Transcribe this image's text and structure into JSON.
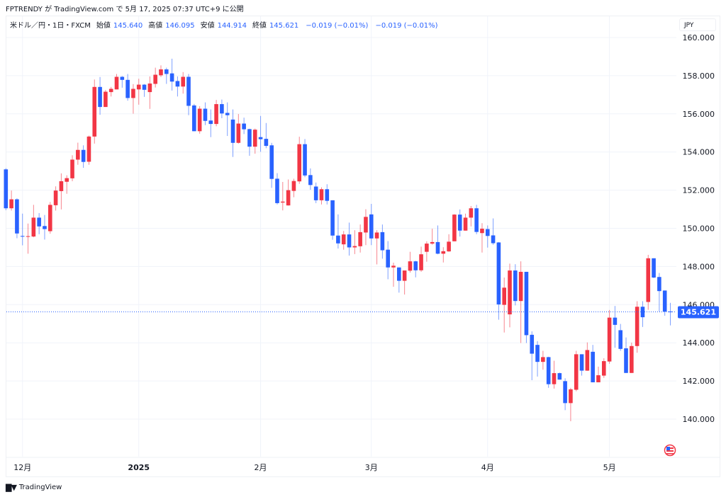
{
  "publish_line": "FPTRENDY が TradingView.com で 5月 17, 2025 07:37 UTC+9 に公開",
  "legend": {
    "symbol": "米ドル／円・1日・FXCM",
    "open_label": "始値",
    "open": "145.640",
    "high_label": "高値",
    "high": "146.095",
    "low_label": "安値",
    "low": "144.914",
    "close_label": "終値",
    "close": "145.621",
    "change1": "−0.019 (−0.01%)",
    "change2": "−0.019 (−0.01%)"
  },
  "currency_label": "JPY",
  "last_price_label": "145.621",
  "brand": {
    "logo": "TV",
    "name": "TradingView"
  },
  "flag_icon": "us-flag-icon",
  "colors": {
    "up": "#F23645",
    "down": "#2962FF",
    "grid": "#F0F3FA",
    "last_price": "#2962FF"
  },
  "chart_data": {
    "type": "candlestick",
    "symbol": "USD/JPY",
    "interval": "1D",
    "y_range": [
      138.5,
      161.2
    ],
    "y_ticks": [
      "140.000",
      "142.000",
      "144.000",
      "146.000",
      "148.000",
      "150.000",
      "152.000",
      "154.000",
      "156.000",
      "158.000",
      "160.000"
    ],
    "x_ticks": [
      {
        "label": "12月",
        "index": 3,
        "bold": false
      },
      {
        "label": "2025",
        "index": 24,
        "bold": true
      },
      {
        "label": "2月",
        "index": 46,
        "bold": false
      },
      {
        "label": "3月",
        "index": 66,
        "bold": false
      },
      {
        "label": "4月",
        "index": 87,
        "bold": false
      },
      {
        "label": "5月",
        "index": 109,
        "bold": false
      }
    ],
    "grid": true,
    "last_price": 145.621,
    "ohlc_fields": [
      "open",
      "high",
      "low",
      "close"
    ],
    "candles": [
      [
        153.09,
        153.15,
        150.95,
        151.05
      ],
      [
        151.05,
        151.98,
        150.93,
        151.52
      ],
      [
        151.52,
        151.57,
        149.48,
        149.73
      ],
      [
        149.6,
        150.77,
        149.11,
        149.57
      ],
      [
        149.56,
        150.25,
        148.67,
        149.59
      ],
      [
        149.57,
        151.23,
        149.53,
        150.56
      ],
      [
        150.56,
        150.8,
        149.69,
        150.1
      ],
      [
        150.12,
        150.7,
        149.41,
        149.96
      ],
      [
        149.85,
        151.38,
        149.72,
        151.23
      ],
      [
        151.21,
        152.2,
        150.93,
        151.98
      ],
      [
        151.95,
        152.88,
        150.99,
        152.47
      ],
      [
        152.44,
        152.78,
        151.81,
        152.63
      ],
      [
        152.62,
        153.83,
        152.47,
        153.6
      ],
      [
        153.6,
        154.49,
        153.33,
        154.11
      ],
      [
        154.11,
        154.35,
        153.17,
        153.48
      ],
      [
        153.49,
        154.86,
        153.33,
        154.81
      ],
      [
        154.81,
        157.8,
        154.44,
        157.41
      ],
      [
        157.41,
        157.93,
        155.95,
        156.36
      ],
      [
        156.36,
        157.25,
        156.36,
        157.16
      ],
      [
        157.14,
        157.41,
        156.91,
        157.31
      ],
      [
        157.28,
        158.09,
        157.28,
        157.94
      ],
      [
        157.94,
        157.98,
        157.37,
        157.78
      ],
      [
        157.78,
        158.09,
        156.69,
        156.83
      ],
      [
        156.83,
        157.56,
        156.01,
        157.31
      ],
      [
        157.28,
        157.84,
        156.48,
        157.53
      ],
      [
        157.53,
        157.56,
        156.89,
        157.26
      ],
      [
        157.14,
        157.96,
        156.26,
        157.59
      ],
      [
        157.57,
        158.42,
        157.38,
        158.05
      ],
      [
        158.02,
        158.54,
        157.93,
        158.33
      ],
      [
        158.33,
        158.42,
        157.57,
        158.09
      ],
      [
        158.12,
        158.89,
        157.22,
        157.69
      ],
      [
        157.72,
        157.96,
        156.91,
        157.43
      ],
      [
        157.43,
        158.19,
        157.06,
        157.94
      ],
      [
        157.94,
        158.09,
        155.93,
        156.42
      ],
      [
        156.44,
        156.52,
        155.09,
        155.09
      ],
      [
        155.09,
        156.4,
        154.96,
        156.27
      ],
      [
        156.27,
        156.6,
        155.41,
        155.63
      ],
      [
        155.65,
        156.23,
        154.78,
        155.47
      ],
      [
        155.47,
        156.73,
        155.35,
        156.51
      ],
      [
        156.51,
        156.75,
        155.77,
        156.02
      ],
      [
        156.05,
        156.6,
        154.84,
        155.93
      ],
      [
        155.7,
        156.23,
        153.74,
        154.48
      ],
      [
        154.48,
        155.99,
        154.44,
        155.49
      ],
      [
        155.49,
        155.8,
        154.94,
        155.19
      ],
      [
        155.2,
        155.22,
        153.8,
        154.28
      ],
      [
        154.28,
        155.23,
        153.91,
        155.17
      ],
      [
        154.78,
        155.89,
        154.01,
        154.67
      ],
      [
        154.69,
        155.52,
        154.2,
        154.32
      ],
      [
        154.35,
        154.48,
        152.12,
        152.59
      ],
      [
        152.6,
        152.89,
        151.25,
        151.32
      ],
      [
        151.35,
        152.43,
        150.94,
        151.4
      ],
      [
        151.2,
        152.56,
        151.19,
        152.0
      ],
      [
        151.96,
        152.6,
        151.63,
        152.48
      ],
      [
        152.46,
        154.8,
        152.33,
        154.41
      ],
      [
        154.41,
        154.68,
        152.68,
        152.77
      ],
      [
        152.79,
        153.14,
        152.02,
        152.27
      ],
      [
        152.19,
        152.4,
        151.32,
        151.47
      ],
      [
        151.47,
        152.15,
        151.25,
        152.05
      ],
      [
        152.05,
        152.31,
        151.25,
        151.44
      ],
      [
        151.47,
        151.47,
        149.4,
        149.62
      ],
      [
        149.62,
        150.73,
        148.94,
        149.21
      ],
      [
        149.16,
        149.86,
        148.88,
        149.68
      ],
      [
        149.68,
        150.3,
        148.57,
        149.0
      ],
      [
        149.0,
        149.9,
        148.65,
        149.07
      ],
      [
        149.06,
        150.2,
        148.73,
        149.8
      ],
      [
        149.78,
        151.0,
        149.12,
        150.6
      ],
      [
        150.73,
        151.28,
        149.12,
        149.47
      ],
      [
        149.47,
        149.9,
        148.11,
        149.78
      ],
      [
        149.8,
        150.2,
        148.41,
        148.85
      ],
      [
        148.88,
        149.33,
        147.33,
        147.95
      ],
      [
        147.95,
        148.2,
        146.94,
        148.04
      ],
      [
        147.95,
        147.95,
        146.63,
        147.25
      ],
      [
        147.25,
        147.79,
        146.53,
        147.79
      ],
      [
        147.78,
        148.77,
        147.68,
        148.27
      ],
      [
        148.27,
        148.3,
        147.43,
        147.8
      ],
      [
        147.8,
        149.04,
        147.72,
        148.64
      ],
      [
        148.77,
        149.32,
        148.25,
        149.2
      ],
      [
        149.2,
        149.98,
        149.14,
        149.28
      ],
      [
        149.28,
        150.15,
        148.64,
        148.67
      ],
      [
        148.67,
        149.01,
        148.21,
        148.8
      ],
      [
        148.79,
        149.69,
        148.77,
        149.3
      ],
      [
        149.32,
        150.74,
        149.32,
        150.72
      ],
      [
        150.72,
        150.99,
        149.57,
        149.88
      ],
      [
        149.88,
        150.77,
        149.88,
        150.56
      ],
      [
        150.56,
        151.17,
        150.1,
        151.05
      ],
      [
        151.05,
        151.23,
        149.69,
        149.81
      ],
      [
        149.75,
        150.27,
        148.73,
        149.98
      ],
      [
        149.96,
        150.15,
        148.99,
        149.6
      ],
      [
        149.63,
        150.52,
        149.14,
        149.22
      ],
      [
        149.26,
        149.28,
        145.21,
        146.01
      ],
      [
        145.99,
        147.42,
        144.54,
        146.89
      ],
      [
        145.49,
        148.15,
        144.81,
        147.79
      ],
      [
        147.79,
        148.12,
        145.96,
        146.19
      ],
      [
        146.19,
        148.27,
        143.99,
        147.72
      ],
      [
        147.72,
        147.72,
        143.99,
        144.4
      ],
      [
        144.42,
        144.6,
        142.04,
        143.43
      ],
      [
        143.89,
        144.09,
        142.23,
        143.0
      ],
      [
        143.0,
        143.58,
        142.59,
        143.25
      ],
      [
        143.25,
        143.27,
        141.64,
        141.83
      ],
      [
        141.83,
        143.06,
        141.6,
        142.41
      ],
      [
        142.41,
        142.44,
        142.07,
        142.07
      ],
      [
        141.99,
        142.14,
        140.47,
        140.84
      ],
      [
        140.84,
        141.64,
        139.89,
        141.56
      ],
      [
        141.54,
        143.58,
        141.46,
        143.4
      ],
      [
        143.4,
        143.4,
        142.28,
        142.54
      ],
      [
        142.54,
        144.02,
        142.53,
        143.62
      ],
      [
        143.53,
        143.89,
        141.93,
        141.93
      ],
      [
        141.93,
        142.75,
        141.93,
        142.3
      ],
      [
        142.28,
        143.19,
        142.16,
        143.04
      ],
      [
        143.02,
        145.72,
        142.9,
        145.32
      ],
      [
        145.32,
        145.93,
        143.74,
        144.94
      ],
      [
        144.66,
        144.99,
        143.58,
        143.68
      ],
      [
        143.71,
        144.28,
        142.42,
        142.42
      ],
      [
        142.42,
        144.01,
        142.42,
        143.83
      ],
      [
        143.83,
        146.18,
        143.48,
        145.89
      ],
      [
        145.89,
        146.18,
        144.83,
        145.34
      ],
      [
        146.14,
        148.61,
        145.73,
        148.43
      ],
      [
        148.43,
        148.43,
        147.39,
        147.42
      ],
      [
        147.45,
        147.66,
        145.64,
        146.71
      ],
      [
        146.74,
        146.74,
        145.42,
        145.64
      ],
      [
        145.64,
        146.095,
        144.914,
        145.621
      ]
    ]
  }
}
